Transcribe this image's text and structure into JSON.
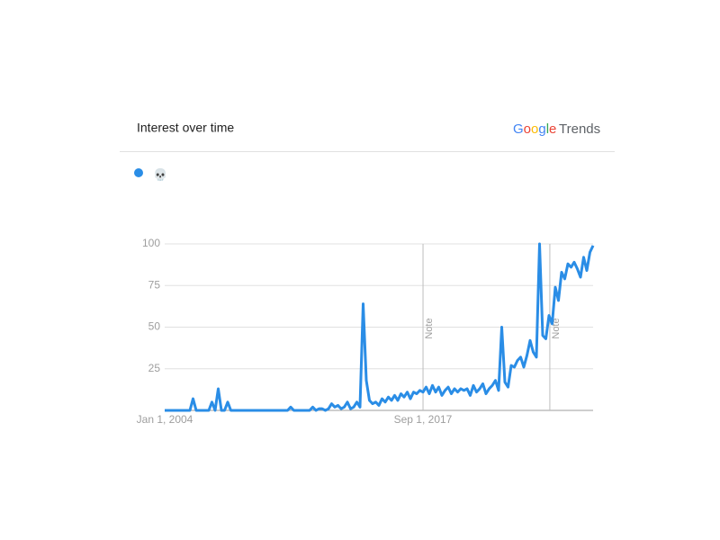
{
  "header": {
    "title": "Interest over time",
    "brand": "Google",
    "product": "Trends"
  },
  "chart_data": {
    "type": "line",
    "categories": [
      "Jan 1, 2004",
      null,
      null,
      null,
      null,
      null,
      null,
      null,
      null,
      null,
      null,
      null,
      null,
      null,
      null,
      null,
      null,
      null,
      null,
      null,
      null,
      null,
      null,
      null,
      null,
      null,
      null,
      null,
      null,
      null,
      null,
      null,
      null,
      null,
      null,
      null,
      null,
      null,
      null,
      null,
      null,
      null,
      null,
      null,
      null,
      null,
      null,
      null,
      null,
      null,
      null,
      null,
      null,
      null,
      null,
      null,
      null,
      null,
      null,
      null,
      null,
      null,
      null,
      null,
      null,
      null,
      null,
      null,
      null,
      null,
      null,
      null,
      null,
      null,
      null,
      null,
      null,
      null,
      null,
      null,
      null,
      null,
      "Sep 1, 2017",
      null,
      null,
      null,
      null,
      null,
      null,
      null,
      null,
      null,
      null,
      null,
      null,
      null,
      null,
      null,
      null,
      null,
      null,
      null,
      null,
      null,
      null,
      null,
      null,
      null,
      null,
      null,
      null,
      null,
      null,
      null,
      null,
      null,
      null,
      null,
      null,
      null,
      null,
      null,
      null,
      null,
      null,
      null,
      null,
      null,
      null,
      null,
      null,
      null,
      null,
      null,
      null,
      null,
      null
    ],
    "series": [
      {
        "name": "💀",
        "color": "#2a8de6",
        "values": [
          0,
          0,
          0,
          0,
          0,
          0,
          0,
          0,
          0,
          7,
          0,
          0,
          0,
          0,
          0,
          5,
          0,
          13,
          0,
          0,
          5,
          0,
          0,
          0,
          0,
          0,
          0,
          0,
          0,
          0,
          0,
          0,
          0,
          0,
          0,
          0,
          0,
          0,
          0,
          0,
          2,
          0,
          0,
          0,
          0,
          0,
          0,
          2,
          0,
          1,
          1,
          0,
          1,
          4,
          2,
          3,
          1,
          2,
          5,
          1,
          2,
          5,
          2,
          64,
          18,
          6,
          4,
          5,
          3,
          7,
          5,
          8,
          6,
          9,
          6,
          10,
          8,
          11,
          7,
          11,
          10,
          12,
          11,
          14,
          10,
          15,
          11,
          14,
          9,
          12,
          14,
          10,
          13,
          11,
          13,
          12,
          13,
          9,
          15,
          11,
          13,
          16,
          10,
          13,
          15,
          18,
          12,
          50,
          17,
          14,
          27,
          26,
          30,
          32,
          26,
          33,
          42,
          35,
          32,
          100,
          45,
          43,
          57,
          52,
          74,
          66,
          83,
          79,
          88,
          86,
          89,
          85,
          80,
          92,
          84,
          95,
          99
        ]
      }
    ],
    "ylim": [
      0,
      100
    ],
    "yticks": [
      25,
      50,
      75,
      100
    ],
    "grid": true,
    "annotations": [
      "Note",
      "Note"
    ]
  }
}
